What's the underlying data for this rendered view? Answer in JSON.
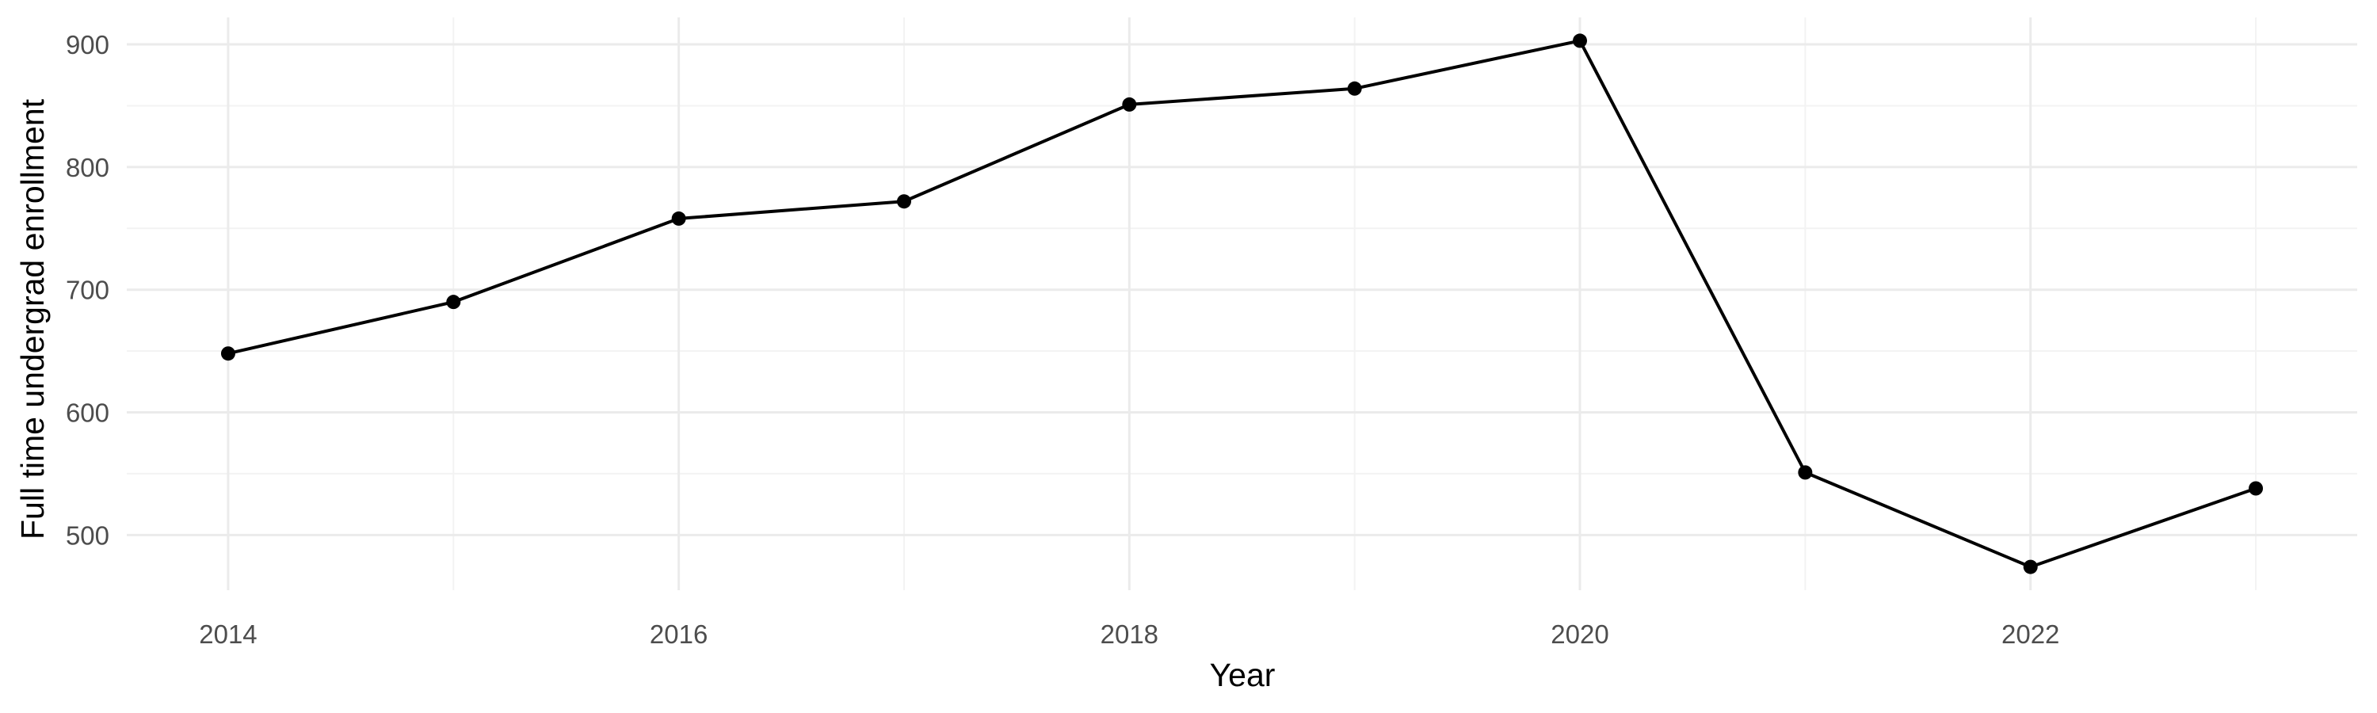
{
  "chart_data": {
    "type": "line",
    "x": [
      2014,
      2015,
      2016,
      2017,
      2018,
      2019,
      2020,
      2021,
      2022,
      2023
    ],
    "series": [
      {
        "values": [
          648,
          690,
          758,
          772,
          851,
          864,
          903,
          551,
          474,
          538
        ]
      }
    ],
    "xlabel": "Year",
    "ylabel": "Full time undergrad enrollment",
    "xlim": [
      2013.55,
      2023.45
    ],
    "ylim": [
      455,
      922
    ],
    "x_ticks": [
      2014,
      2016,
      2018,
      2020,
      2022
    ],
    "x_tick_labels": [
      "2014",
      "2016",
      "2018",
      "2020",
      "2022"
    ],
    "y_ticks": [
      500,
      600,
      700,
      800,
      900
    ],
    "y_tick_labels": [
      "500",
      "600",
      "700",
      "800",
      "900"
    ],
    "grid": true,
    "legend": "none",
    "colors": {
      "line": "#000000",
      "grid": "#ebebeb",
      "tick_text": "#4d4d4d"
    }
  }
}
